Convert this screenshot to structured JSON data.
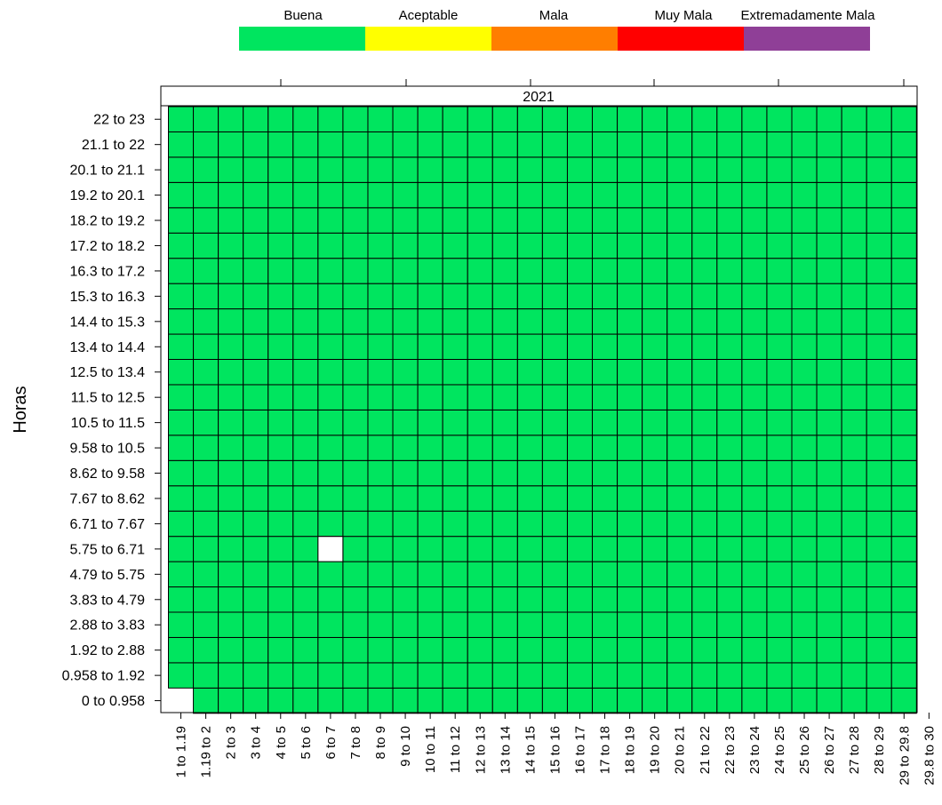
{
  "chart_data": {
    "type": "heatmap",
    "strip_label": "2021",
    "ylabel": "Horas",
    "xlabel": "",
    "legend": {
      "position": "top",
      "items": [
        {
          "label": "Buena",
          "color": "#00e55f"
        },
        {
          "label": "Aceptable",
          "color": "#ffff00"
        },
        {
          "label": "Mala",
          "color": "#ff7e00"
        },
        {
          "label": "Muy Mala",
          "color": "#ff0000"
        },
        {
          "label": "Extremadamente Mala",
          "color": "#8f3f97"
        }
      ]
    },
    "x_categories": [
      "1 to 1.19",
      "1.19 to 2",
      "2 to 3",
      "3 to 4",
      "4 to 5",
      "5 to 6",
      "6 to 7",
      "7 to 8",
      "8 to 9",
      "9 to 10",
      "10 to 11",
      "11 to 12",
      "12 to 13",
      "13 to 14",
      "14 to 15",
      "15 to 16",
      "16 to 17",
      "17 to 18",
      "18 to 19",
      "19 to 20",
      "20 to 21",
      "21 to 22",
      "22 to 23",
      "23 to 24",
      "24 to 25",
      "25 to 26",
      "26 to 27",
      "27 to 28",
      "28 to 29",
      "29 to 29.8",
      "29.8 to 30"
    ],
    "y_categories": [
      "0 to 0.958",
      "0.958 to 1.92",
      "1.92 to 2.88",
      "2.88 to 3.83",
      "3.83 to 4.79",
      "4.79 to 5.75",
      "5.75 to 6.71",
      "6.71 to 7.67",
      "7.67 to 8.62",
      "8.62 to 9.58",
      "9.58 to 10.5",
      "10.5 to 11.5",
      "11.5 to 12.5",
      "12.5 to 13.4",
      "13.4 to 14.4",
      "14.4 to 15.3",
      "15.3 to 16.3",
      "16.3 to 17.2",
      "17.2 to 18.2",
      "18.2 to 19.2",
      "19.2 to 20.1",
      "20.1 to 21.1",
      "21.1 to 22",
      "22 to 23"
    ],
    "default_category": "Buena",
    "missing_cells": [
      {
        "x": "1 to 1.19",
        "y": "0 to 0.958"
      },
      {
        "x": "6 to 7",
        "y": "5.75 to 6.71"
      }
    ],
    "empty_columns": [
      "29.8 to 30"
    ]
  }
}
